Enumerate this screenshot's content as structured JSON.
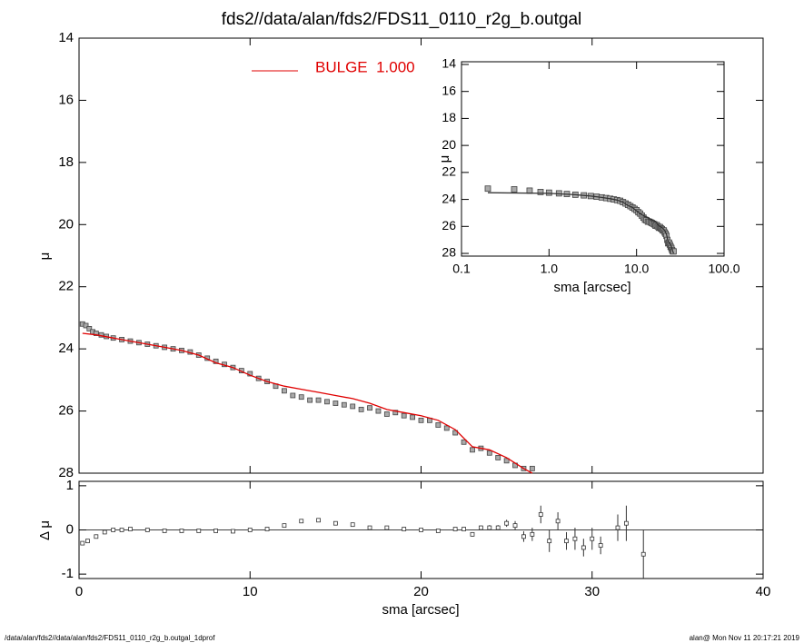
{
  "chart_data": [
    {
      "type": "scatter",
      "title": "fds2//data/alan/fds2/FDS11_0110_r2g_b.outgal",
      "y_label": "μ",
      "xlim": [
        0,
        40
      ],
      "xticks": [
        0,
        10,
        20,
        30,
        40
      ],
      "ylim": [
        28,
        14
      ],
      "yticks": [
        14,
        16,
        18,
        20,
        22,
        24,
        26,
        28
      ],
      "series": [
        {
          "marker": "square",
          "color": "#888888",
          "x": [
            0.2,
            0.4,
            0.6,
            0.8,
            1.0,
            1.3,
            1.6,
            2.0,
            2.5,
            3.0,
            3.5,
            4.0,
            4.5,
            5.0,
            5.5,
            6.0,
            6.5,
            7.0,
            7.5,
            8.0,
            8.5,
            9.0,
            9.5,
            10.0,
            10.5,
            11.0,
            11.5,
            12.0,
            12.5,
            13.0,
            13.5,
            14.0,
            14.5,
            15.0,
            15.5,
            16.0,
            16.5,
            17.0,
            17.5,
            18.0,
            18.5,
            19.0,
            19.5,
            20.0,
            20.5,
            21.0,
            21.5,
            22.0,
            22.5,
            23.0,
            23.5,
            24.0,
            24.5,
            25.0,
            25.5,
            26.0,
            26.5
          ],
          "values": [
            23.2,
            23.25,
            23.35,
            23.45,
            23.5,
            23.55,
            23.6,
            23.65,
            23.7,
            23.75,
            23.8,
            23.85,
            23.9,
            23.95,
            24.0,
            24.05,
            24.1,
            24.2,
            24.3,
            24.4,
            24.5,
            24.6,
            24.7,
            24.8,
            24.95,
            25.05,
            25.2,
            25.35,
            25.5,
            25.55,
            25.65,
            25.65,
            25.7,
            25.75,
            25.8,
            25.85,
            25.95,
            25.9,
            26.0,
            26.1,
            26.05,
            26.15,
            26.2,
            26.3,
            26.3,
            26.45,
            26.55,
            26.7,
            27.0,
            27.25,
            27.2,
            27.35,
            27.5,
            27.6,
            27.75,
            27.85,
            27.85
          ]
        },
        {
          "name": "BULGE  1.000",
          "color": "#e00000",
          "x": [
            0.2,
            1,
            2,
            3,
            4,
            5,
            6,
            7,
            8,
            9,
            10,
            11,
            12,
            13,
            14,
            15,
            16,
            17,
            18,
            19,
            20,
            21,
            22,
            23,
            24,
            25,
            26,
            26.5
          ],
          "values": [
            23.5,
            23.55,
            23.65,
            23.75,
            23.85,
            23.95,
            24.05,
            24.2,
            24.45,
            24.6,
            24.85,
            25.05,
            25.2,
            25.3,
            25.4,
            25.5,
            25.6,
            25.75,
            25.95,
            26.05,
            26.15,
            26.3,
            26.6,
            27.15,
            27.25,
            27.5,
            27.85,
            28.0
          ]
        }
      ]
    },
    {
      "type": "scatter",
      "x_label": "sma [arcsec]",
      "y_label": "μ",
      "xscale": "log",
      "xlim": [
        0.1,
        100
      ],
      "xticks": [
        0.1,
        {
          "value": 1,
          "label": "1.0"
        },
        {
          "value": 10,
          "label": "10.0"
        },
        {
          "value": 100,
          "label": "100.0"
        }
      ],
      "ylim": [
        28.2,
        13.8
      ],
      "yticks": [
        14,
        16,
        18,
        20,
        22,
        24,
        26,
        28
      ],
      "series": [
        {
          "marker": "square",
          "color": "#888888",
          "x": [
            0.2,
            0.4,
            0.6,
            0.8,
            1.0,
            1.3,
            1.6,
            2.0,
            2.5,
            3.0,
            3.5,
            4.0,
            4.5,
            5.0,
            5.5,
            6.0,
            6.5,
            7.0,
            7.5,
            8.0,
            8.5,
            9.0,
            9.5,
            10.0,
            10.5,
            11.0,
            11.5,
            12.0,
            12.5,
            13.0,
            13.5,
            14.0,
            14.5,
            15.0,
            15.5,
            16.0,
            16.5,
            17.0,
            17.5,
            18.0,
            18.5,
            19.0,
            19.5,
            20.0,
            20.5,
            21.0,
            21.5,
            22.0,
            22.5,
            23.0,
            23.5,
            24.0,
            24.5,
            25.0,
            25.5,
            26.0,
            26.5
          ],
          "values": [
            23.2,
            23.25,
            23.35,
            23.45,
            23.5,
            23.55,
            23.6,
            23.65,
            23.7,
            23.75,
            23.8,
            23.85,
            23.9,
            23.95,
            24.0,
            24.05,
            24.1,
            24.2,
            24.3,
            24.4,
            24.5,
            24.6,
            24.7,
            24.8,
            24.95,
            25.05,
            25.2,
            25.35,
            25.5,
            25.55,
            25.65,
            25.65,
            25.7,
            25.75,
            25.8,
            25.85,
            25.95,
            25.9,
            26.0,
            26.1,
            26.05,
            26.15,
            26.2,
            26.3,
            26.3,
            26.45,
            26.55,
            26.7,
            27.0,
            27.25,
            27.2,
            27.35,
            27.5,
            27.6,
            27.75,
            27.85,
            27.85
          ]
        },
        {
          "color": "#333333",
          "x": [
            0.2,
            1,
            2,
            3,
            4,
            5,
            6,
            7,
            8,
            9,
            10,
            11,
            12,
            13,
            14,
            15,
            16,
            17,
            18,
            19,
            20,
            21,
            22,
            23,
            24,
            25,
            26,
            26.5
          ],
          "values": [
            23.5,
            23.55,
            23.65,
            23.75,
            23.85,
            23.95,
            24.05,
            24.2,
            24.45,
            24.6,
            24.85,
            25.05,
            25.2,
            25.3,
            25.4,
            25.5,
            25.6,
            25.75,
            25.95,
            26.05,
            26.15,
            26.3,
            26.6,
            27.15,
            27.25,
            27.5,
            27.85,
            28.0
          ]
        }
      ]
    },
    {
      "type": "errorbar",
      "x_label": "sma [arcsec]",
      "y_label": "Δ μ",
      "xlim": [
        0,
        40
      ],
      "xticks": [
        0,
        10,
        20,
        30,
        40
      ],
      "ylim": [
        -1.1,
        1.1
      ],
      "yticks": [
        -1,
        0,
        1
      ],
      "reference_line": 0,
      "series": [
        {
          "color": "#333333",
          "x": [
            0.2,
            0.5,
            1.0,
            1.5,
            2.0,
            2.5,
            3.0,
            4,
            5,
            6,
            7,
            8,
            9,
            10,
            11,
            12,
            13,
            14,
            15,
            16,
            17,
            18,
            19,
            20,
            21,
            22,
            22.5,
            23,
            23.5,
            24,
            24.5,
            25,
            25.5,
            26,
            26.5,
            27,
            27.5,
            28,
            28.5,
            29,
            29.5,
            30,
            30.5,
            31.5,
            32,
            33
          ],
          "values": [
            -0.3,
            -0.25,
            -0.15,
            -0.05,
            0,
            0,
            0.02,
            0,
            -0.02,
            -0.02,
            -0.02,
            -0.02,
            -0.03,
            0,
            0.02,
            0.1,
            0.2,
            0.22,
            0.15,
            0.12,
            0.05,
            0.05,
            0.02,
            0,
            -0.02,
            0.02,
            0.02,
            -0.1,
            0.05,
            0.05,
            0.05,
            0.15,
            0.1,
            -0.15,
            -0.1,
            0.35,
            -0.25,
            0.2,
            -0.25,
            -0.2,
            -0.4,
            -0.2,
            -0.35,
            0.05,
            0.15,
            -0.55
          ],
          "errors": [
            0.01,
            0.01,
            0.01,
            0.01,
            0.01,
            0.01,
            0.01,
            0.01,
            0.01,
            0.01,
            0.01,
            0.01,
            0.01,
            0.01,
            0.01,
            0.01,
            0.02,
            0.02,
            0.02,
            0.02,
            0.02,
            0.02,
            0.02,
            0.03,
            0.03,
            0.04,
            0.04,
            0.05,
            0.05,
            0.06,
            0.06,
            0.08,
            0.1,
            0.12,
            0.15,
            0.2,
            0.25,
            0.2,
            0.2,
            0.25,
            0.2,
            0.25,
            0.2,
            0.3,
            0.4,
            0.55
          ]
        }
      ]
    }
  ],
  "footer": {
    "left": "/data/alan/fds2//data/alan/fds2/FDS11_0110_r2g_b.outgal_1dprof",
    "right": "alan@  Mon Nov 11 20:17:21 2019"
  }
}
